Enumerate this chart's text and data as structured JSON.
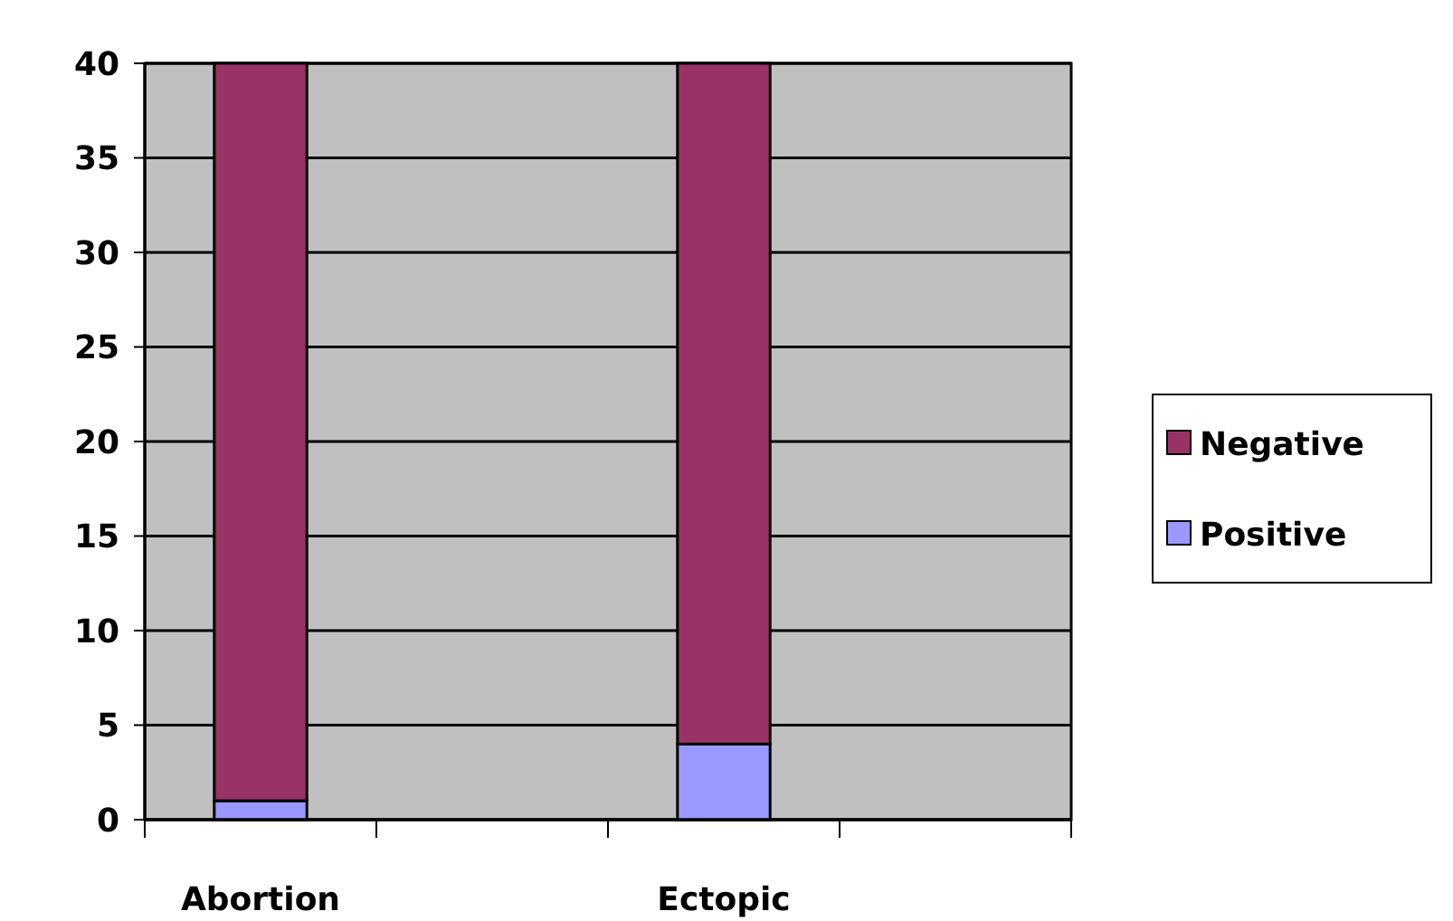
{
  "chart_data": {
    "type": "bar",
    "stacked": true,
    "categories": [
      "Abortion",
      null,
      "Ectopic",
      null
    ],
    "series": [
      {
        "name": "Positive",
        "color": "#9999ff",
        "values": [
          1,
          null,
          4,
          null
        ]
      },
      {
        "name": "Negative",
        "color": "#993366",
        "values": [
          39,
          null,
          36,
          null
        ]
      }
    ],
    "ylim": [
      0,
      40
    ],
    "yticks": [
      0,
      5,
      10,
      15,
      20,
      25,
      30,
      35,
      40
    ],
    "grid": "y",
    "legend": "right"
  }
}
